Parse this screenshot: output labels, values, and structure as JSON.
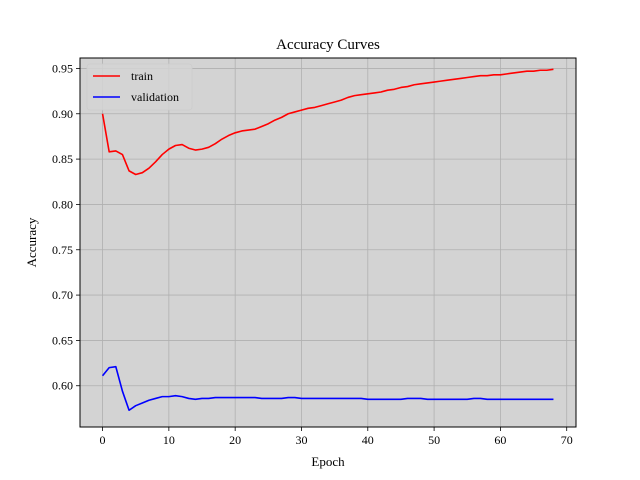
{
  "chart_data": {
    "type": "line",
    "title": "Accuracy Curves",
    "xlabel": "Epoch",
    "ylabel": "Accuracy",
    "xlim": [
      -3.4,
      71.4
    ],
    "ylim": [
      0.5545,
      0.9615
    ],
    "xticks": [
      0,
      10,
      20,
      30,
      40,
      50,
      60,
      70
    ],
    "yticks": [
      0.6,
      0.65,
      0.7,
      0.75,
      0.8,
      0.85,
      0.9,
      0.95
    ],
    "grid": true,
    "legend_position": "top-left",
    "background_color": "#d3d3d3",
    "series": [
      {
        "name": "train",
        "color": "#ff0000",
        "x": [
          0,
          1,
          2,
          3,
          4,
          5,
          6,
          7,
          8,
          9,
          10,
          11,
          12,
          13,
          14,
          15,
          16,
          17,
          18,
          19,
          20,
          21,
          22,
          23,
          24,
          25,
          26,
          27,
          28,
          29,
          30,
          31,
          32,
          33,
          34,
          35,
          36,
          37,
          38,
          39,
          40,
          41,
          42,
          43,
          44,
          45,
          46,
          47,
          48,
          49,
          50,
          51,
          52,
          53,
          54,
          55,
          56,
          57,
          58,
          59,
          60,
          61,
          62,
          63,
          64,
          65,
          66,
          67,
          68
        ],
        "y": [
          0.9,
          0.858,
          0.859,
          0.855,
          0.837,
          0.833,
          0.835,
          0.84,
          0.847,
          0.855,
          0.861,
          0.865,
          0.866,
          0.862,
          0.86,
          0.861,
          0.863,
          0.867,
          0.872,
          0.876,
          0.879,
          0.881,
          0.882,
          0.883,
          0.886,
          0.889,
          0.893,
          0.896,
          0.9,
          0.902,
          0.904,
          0.906,
          0.907,
          0.909,
          0.911,
          0.913,
          0.915,
          0.918,
          0.92,
          0.921,
          0.922,
          0.923,
          0.924,
          0.926,
          0.927,
          0.929,
          0.93,
          0.932,
          0.933,
          0.934,
          0.935,
          0.936,
          0.937,
          0.938,
          0.939,
          0.94,
          0.941,
          0.942,
          0.942,
          0.943,
          0.943,
          0.944,
          0.945,
          0.946,
          0.947,
          0.947,
          0.948,
          0.948,
          0.949
        ]
      },
      {
        "name": "validation",
        "color": "#0000ff",
        "x": [
          0,
          1,
          2,
          3,
          4,
          5,
          6,
          7,
          8,
          9,
          10,
          11,
          12,
          13,
          14,
          15,
          16,
          17,
          18,
          19,
          20,
          21,
          22,
          23,
          24,
          25,
          26,
          27,
          28,
          29,
          30,
          31,
          32,
          33,
          34,
          35,
          36,
          37,
          38,
          39,
          40,
          41,
          42,
          43,
          44,
          45,
          46,
          47,
          48,
          49,
          50,
          51,
          52,
          53,
          54,
          55,
          56,
          57,
          58,
          59,
          60,
          61,
          62,
          63,
          64,
          65,
          66,
          67,
          68
        ],
        "y": [
          0.611,
          0.62,
          0.621,
          0.594,
          0.573,
          0.578,
          0.581,
          0.584,
          0.586,
          0.588,
          0.588,
          0.589,
          0.588,
          0.586,
          0.585,
          0.586,
          0.586,
          0.587,
          0.587,
          0.587,
          0.587,
          0.587,
          0.587,
          0.587,
          0.586,
          0.586,
          0.586,
          0.586,
          0.587,
          0.587,
          0.586,
          0.586,
          0.586,
          0.586,
          0.586,
          0.586,
          0.586,
          0.586,
          0.586,
          0.586,
          0.585,
          0.585,
          0.585,
          0.585,
          0.585,
          0.585,
          0.586,
          0.586,
          0.586,
          0.585,
          0.585,
          0.585,
          0.585,
          0.585,
          0.585,
          0.585,
          0.586,
          0.586,
          0.585,
          0.585,
          0.585,
          0.585,
          0.585,
          0.585,
          0.585,
          0.585,
          0.585,
          0.585,
          0.585
        ]
      }
    ]
  }
}
